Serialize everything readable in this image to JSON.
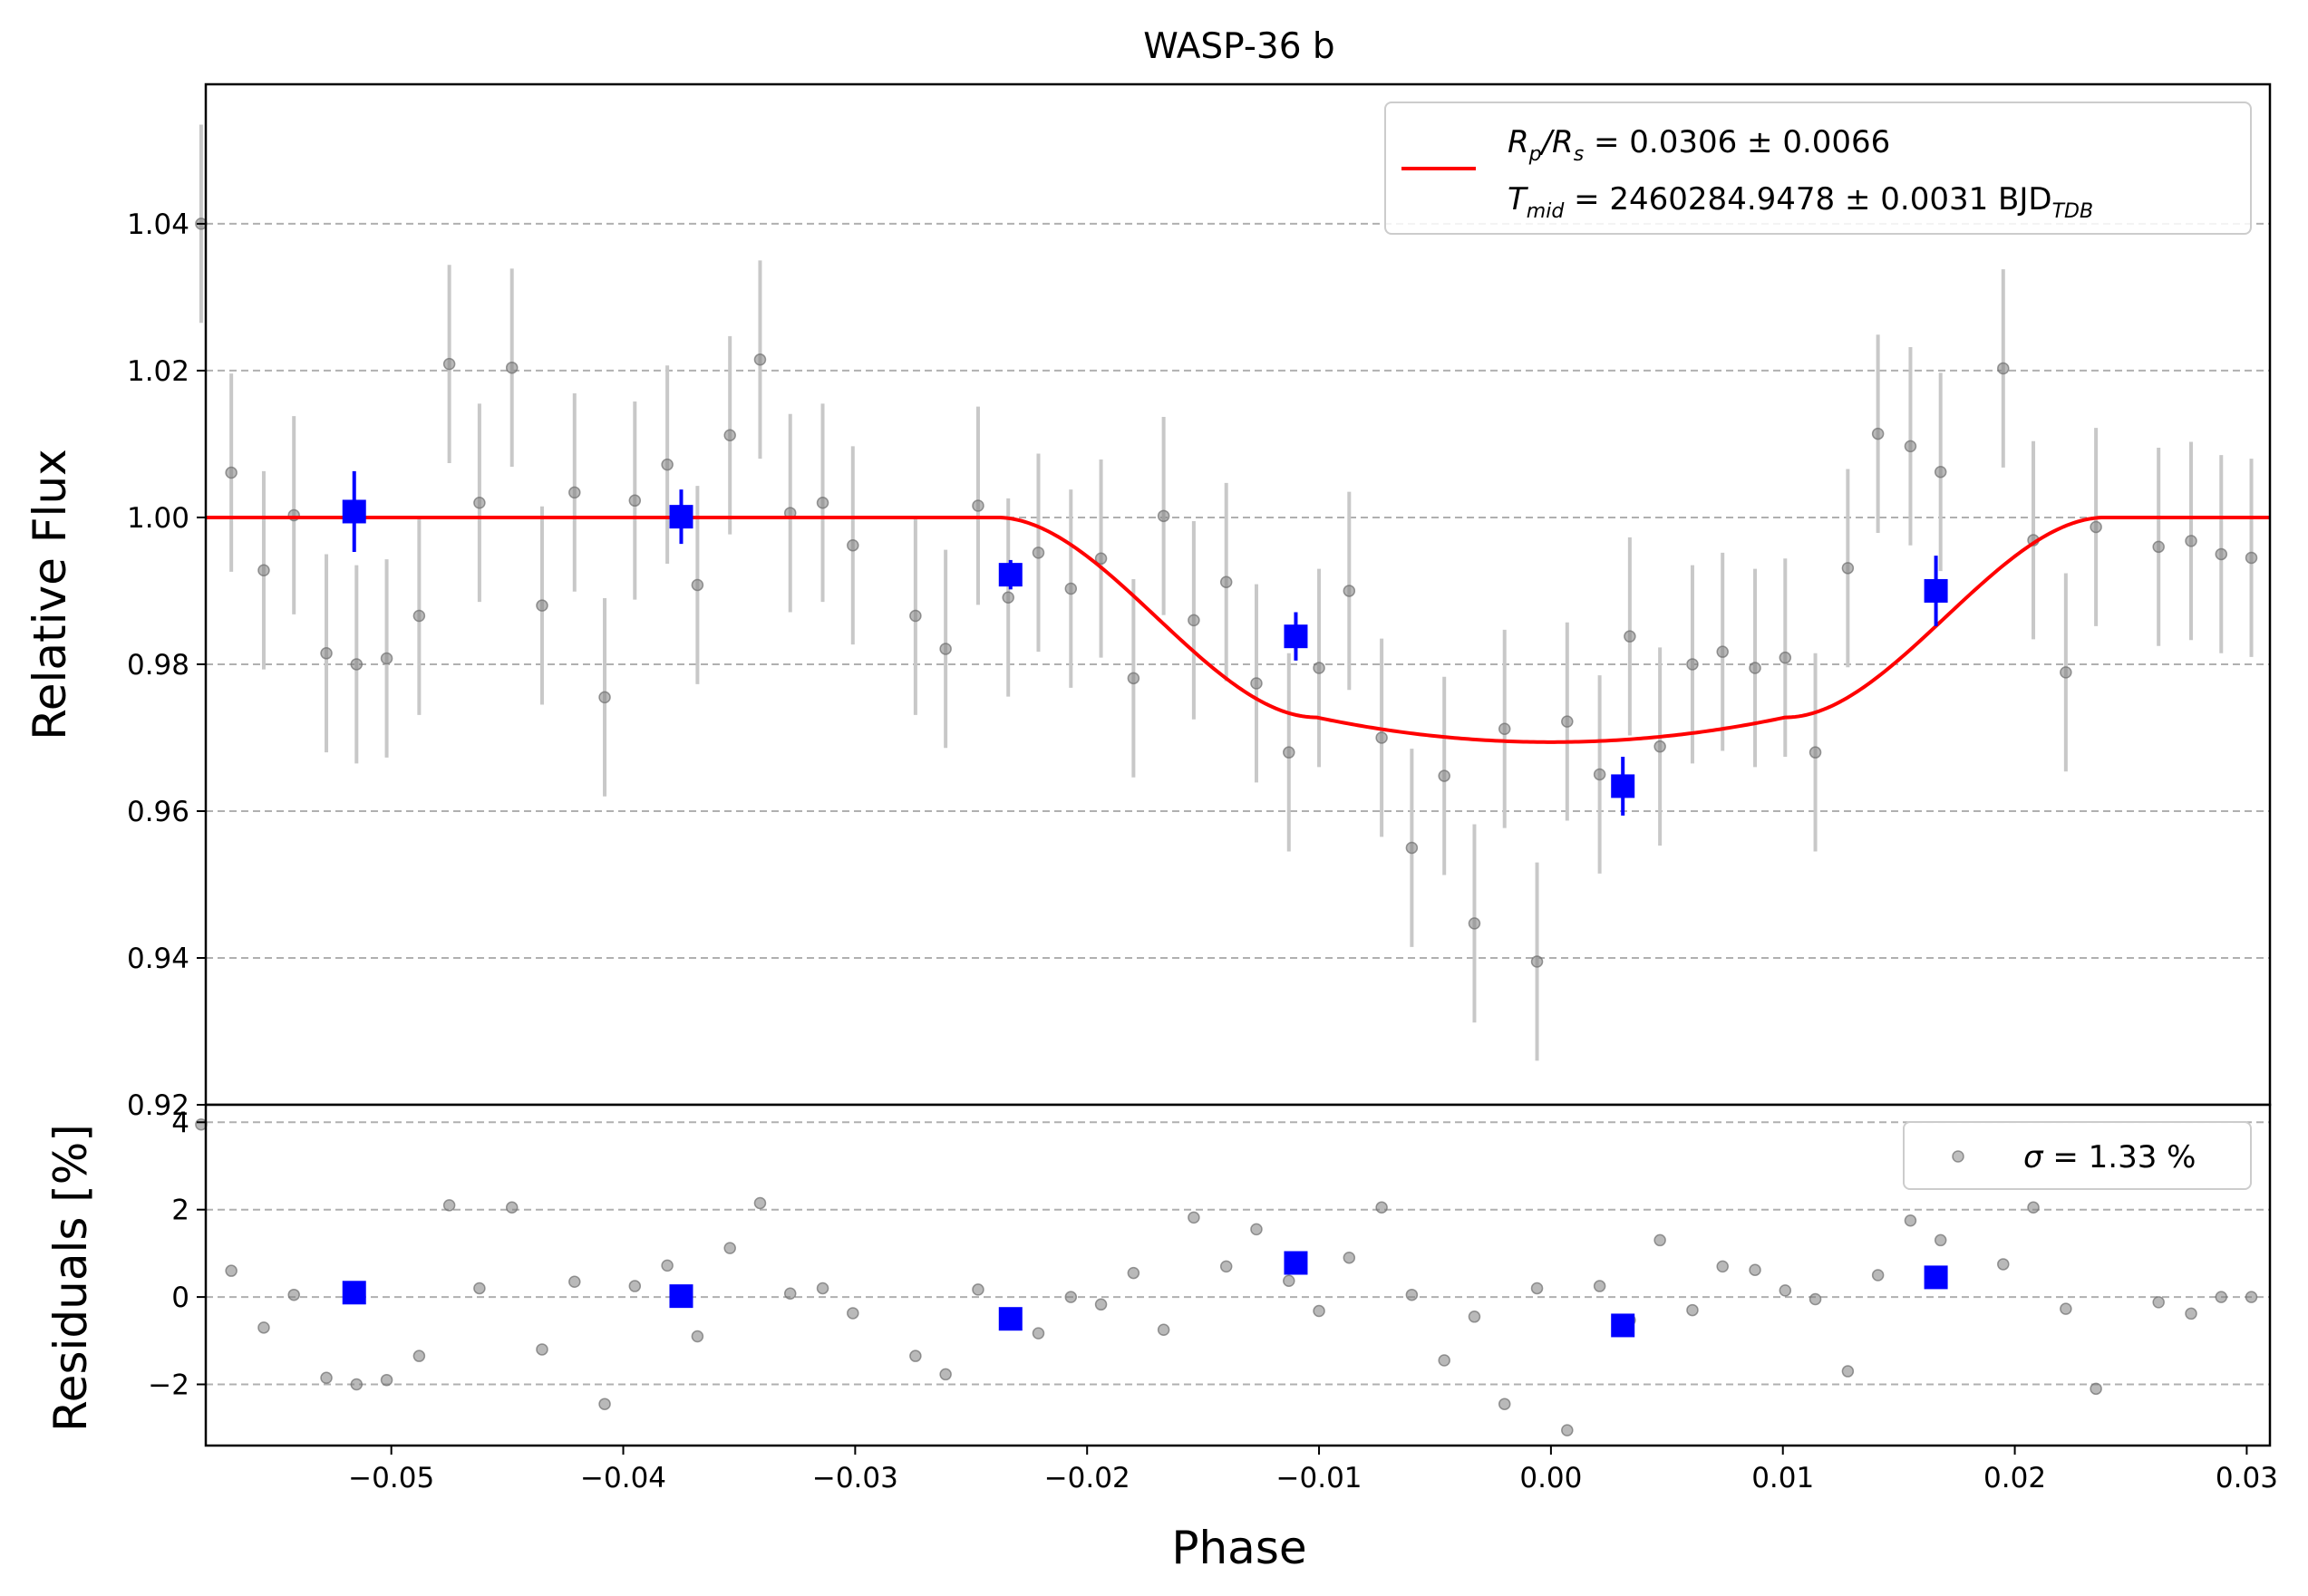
{
  "chart_data": [
    {
      "type": "scatter",
      "panel": "top",
      "title": "WASP-36 b",
      "xlabel": "",
      "ylabel": "Relative Flux",
      "xlim": [
        -0.058,
        0.031
      ],
      "ylim": [
        0.92,
        1.059
      ],
      "yticks": [
        0.92,
        0.94,
        0.96,
        0.98,
        1.0,
        1.02,
        1.04
      ],
      "ytick_labels": [
        "0.92",
        "0.94",
        "0.96",
        "0.98",
        "1.00",
        "1.02",
        "1.04"
      ],
      "grid": "horizontal dashed",
      "legend": {
        "placement": "top-right",
        "line_color": "#ff0000",
        "line1": {
          "lhs": "R",
          "sub_p": "p",
          "mid": "/R",
          "sub_s": "s",
          "rhs": " = 0.0306 ± 0.0066"
        },
        "line2": {
          "lhs": "T",
          "sub_mid": "mid",
          "rhs": " = 2460284.9478 ± 0.0031 BJD",
          "sub_tdb": "TDB"
        }
      },
      "series": [
        {
          "kind": "raw",
          "color": "#808080",
          "errorbar_color": "#c8c8c8",
          "error": 0.0135,
          "x": [
            -0.0582,
            -0.0569,
            -0.0555,
            -0.0542,
            -0.0528,
            -0.0515,
            -0.0502,
            -0.0488,
            -0.0475,
            -0.0462,
            -0.0448,
            -0.0435,
            -0.0421,
            -0.0408,
            -0.0395,
            -0.0381,
            -0.0368,
            -0.0354,
            -0.0341,
            -0.0328,
            -0.0314,
            -0.0301,
            -0.0274,
            -0.0261,
            -0.0247,
            -0.0234,
            -0.0221,
            -0.0207,
            -0.0194,
            -0.018,
            -0.0167,
            -0.0154,
            -0.014,
            -0.0127,
            -0.0113,
            -0.01,
            -0.0087,
            -0.0073,
            -0.006,
            -0.0046,
            -0.0033,
            -0.002,
            -0.0006,
            0.0007,
            0.0021,
            0.0034,
            0.0047,
            0.0061,
            0.0074,
            0.0088,
            0.0101,
            0.0114,
            0.0128,
            0.0141,
            0.0155,
            0.0168,
            0.0195,
            0.0208,
            0.0222,
            0.0235,
            0.0262,
            0.0276,
            0.0289,
            0.0302
          ],
          "y": [
            1.04,
            1.0061,
            0.9928,
            1.0003,
            0.9815,
            0.98,
            0.9808,
            0.9866,
            1.0209,
            1.002,
            1.0204,
            0.988,
            1.0034,
            0.9755,
            1.0023,
            1.0072,
            0.9908,
            1.0112,
            1.0215,
            1.0006,
            1.002,
            0.9962,
            0.9866,
            0.9821,
            1.0016,
            0.9891,
            0.9952,
            0.9903,
            0.9944,
            0.9781,
            1.0002,
            0.986,
            0.9912,
            0.9774,
            0.968,
            0.9795,
            0.99,
            0.97,
            0.955,
            0.9648,
            0.9447,
            0.9712,
            0.9395,
            0.9722,
            0.965,
            0.9838,
            0.9688,
            0.98,
            0.9817,
            0.9795,
            0.9809,
            0.968,
            0.9931,
            1.0114,
            1.0097,
            1.0062,
            1.0203,
            0.9969,
            0.9789,
            0.9987,
            0.996,
            0.9968,
            0.995,
            0.9945
          ]
        },
        {
          "kind": "binned",
          "color": "#0000ff",
          "x": [
            -0.0516,
            -0.0375,
            -0.0233,
            -0.011,
            0.0031,
            0.0166
          ],
          "y": [
            1.0008,
            1.0001,
            0.9922,
            0.9838,
            0.9634,
            0.99
          ],
          "error": [
            0.0055,
            0.0037,
            0.002,
            0.0033,
            0.004,
            0.0048
          ]
        },
        {
          "kind": "model",
          "color": "#ff0000",
          "t0": 0.0,
          "t1": 0.0239,
          "t2": 0.0101,
          "depth": 0.0306
        }
      ]
    },
    {
      "type": "scatter",
      "panel": "bottom",
      "xlabel": "Phase",
      "ylabel": "Residuals [%]",
      "xlim": [
        -0.058,
        0.031
      ],
      "ylim": [
        -3.4,
        4.4
      ],
      "xticks": [
        -0.05,
        -0.04,
        -0.03,
        -0.02,
        -0.01,
        0.0,
        0.01,
        0.02,
        0.03
      ],
      "xtick_labels": [
        "−0.05",
        "−0.04",
        "−0.03",
        "−0.02",
        "−0.01",
        "0.00",
        "0.01",
        "0.02",
        "0.03"
      ],
      "yticks": [
        -2,
        0,
        2,
        4
      ],
      "ytick_labels": [
        "−2",
        "0",
        "2",
        "4"
      ],
      "grid": "horizontal dashed",
      "legend": {
        "placement": "top-right",
        "sigma": "σ",
        "text": " = 1.33 %"
      },
      "series": [
        {
          "kind": "raw_residuals",
          "color": "#808080",
          "x": [
            -0.0582,
            -0.0569,
            -0.0555,
            -0.0542,
            -0.0528,
            -0.0515,
            -0.0502,
            -0.0488,
            -0.0475,
            -0.0462,
            -0.0448,
            -0.0435,
            -0.0421,
            -0.0408,
            -0.0395,
            -0.0381,
            -0.0368,
            -0.0354,
            -0.0341,
            -0.0328,
            -0.0314,
            -0.0301,
            -0.0274,
            -0.0261,
            -0.0247,
            -0.0234,
            -0.0221,
            -0.0207,
            -0.0194,
            -0.018,
            -0.0167,
            -0.0154,
            -0.014,
            -0.0127,
            -0.0113,
            -0.01,
            -0.0087,
            -0.0073,
            -0.006,
            -0.0046,
            -0.0033,
            -0.002,
            -0.0006,
            0.0007,
            0.0021,
            0.0034,
            0.0047,
            0.0061,
            0.0074,
            0.0088,
            0.0101,
            0.0114,
            0.0128,
            0.0141,
            0.0155,
            0.0168,
            0.0195,
            0.0208,
            0.0222,
            0.0235,
            0.0262,
            0.0276,
            0.0289,
            0.0302
          ],
          "y": [
            3.95,
            0.6,
            -0.7,
            0.05,
            -1.85,
            -2.0,
            -1.9,
            -1.35,
            2.1,
            0.2,
            2.05,
            -1.2,
            0.35,
            -2.45,
            0.25,
            0.72,
            -0.9,
            1.12,
            2.15,
            0.08,
            0.2,
            -0.37,
            -1.35,
            -1.77,
            0.17,
            -0.53,
            -0.83,
            0.0,
            -0.17,
            0.55,
            -0.75,
            1.82,
            0.7,
            1.55,
            0.37,
            -0.32,
            0.9,
            2.05,
            0.05,
            -1.45,
            -0.45,
            -2.45,
            0.2,
            -3.05,
            0.25,
            -0.53,
            1.3,
            -0.3,
            0.7,
            0.62,
            0.15,
            -0.05,
            -1.7,
            0.5,
            1.75,
            1.3,
            0.75,
            2.05,
            -0.27,
            -2.1,
            -0.12,
            -0.38,
            0.0,
            0.0
          ]
        },
        {
          "kind": "binned_residuals",
          "color": "#0000ff",
          "x": [
            -0.0516,
            -0.0375,
            -0.0233,
            -0.011,
            0.0031,
            0.0166
          ],
          "y": [
            0.1,
            0.02,
            -0.5,
            0.78,
            -0.65,
            0.45
          ]
        }
      ]
    }
  ]
}
